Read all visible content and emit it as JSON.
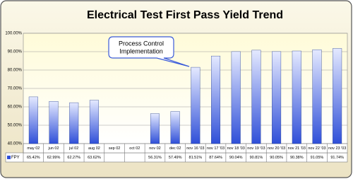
{
  "chart_data": {
    "type": "bar",
    "title": "Electrical Test First Pass Yield Trend",
    "categories": [
      "may 02",
      "jun 02",
      "jul 02",
      "aug 02",
      "sep 02",
      "oct 02",
      "nov 02",
      "dec 02",
      "nov 16 '03",
      "nov 17 '03",
      "nov 18 '03",
      "nov 19 '03",
      "nov 20 '03",
      "nov 21 '03",
      "nov 22 '03",
      "nov 23 '03"
    ],
    "series": [
      {
        "name": "FPY",
        "color": "#2f4fd8",
        "values": [
          65.42,
          62.99,
          62.27,
          63.62,
          null,
          null,
          56.31,
          57.49,
          81.51,
          87.64,
          90.04,
          90.81,
          90.05,
          90.38,
          91.05,
          91.74
        ],
        "value_labels": [
          "65.42%",
          "62.99%",
          "62.27%",
          "63.62%",
          null,
          null,
          "56.31%",
          "57.49%",
          "81.51%",
          "87.64%",
          "90.04%",
          "90.81%",
          "90.05%",
          "90.38%",
          "91.05%",
          "91.74%"
        ]
      }
    ],
    "ylim": [
      40,
      100
    ],
    "yticks": [
      {
        "value": 40,
        "label": "40.00%"
      },
      {
        "value": 50,
        "label": "50.00%"
      },
      {
        "value": 60,
        "label": "60.00%"
      },
      {
        "value": 70,
        "label": "70.00%"
      },
      {
        "value": 80,
        "label": "80.00%"
      },
      {
        "value": 90,
        "label": "90.00%"
      },
      {
        "value": 100,
        "label": "100.00%"
      }
    ],
    "grid": true,
    "annotation": [
      "Process Control",
      "Implementation"
    ]
  }
}
